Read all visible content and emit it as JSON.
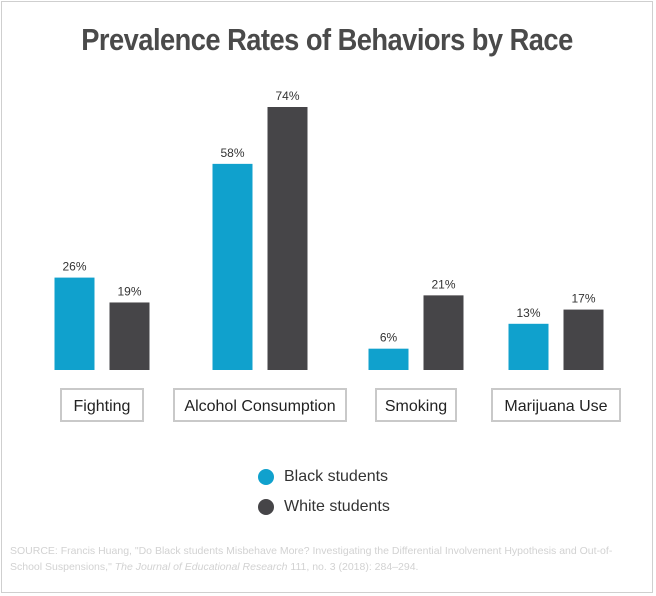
{
  "chart_data": {
    "type": "bar",
    "title": "Prevalence Rates of Behaviors by Race",
    "categories": [
      "Fighting",
      "Alcohol Consumption",
      "Smoking",
      "Marijuana Use"
    ],
    "series": [
      {
        "name": "Black students",
        "color": "#10a1cd",
        "values": [
          26,
          58,
          6,
          13
        ],
        "labels": [
          "26%",
          "58%",
          "6%",
          "13%"
        ]
      },
      {
        "name": "White students",
        "color": "#464548",
        "values": [
          19,
          74,
          21,
          17
        ],
        "labels": [
          "19%",
          "74%",
          "21%",
          "17%"
        ]
      }
    ],
    "ylim": [
      0,
      74
    ],
    "grid": false,
    "legend": "bottom-center"
  },
  "source": {
    "prefix": "SOURCE: Francis Huang, \"Do Black students Misbehave More? Investigating the Differential Involvement Hypothesis and Out-of-School Suspensions,\" ",
    "journal": "The Journal of Educational Research",
    "suffix": " 111, no. 3 (2018): 284–294."
  }
}
